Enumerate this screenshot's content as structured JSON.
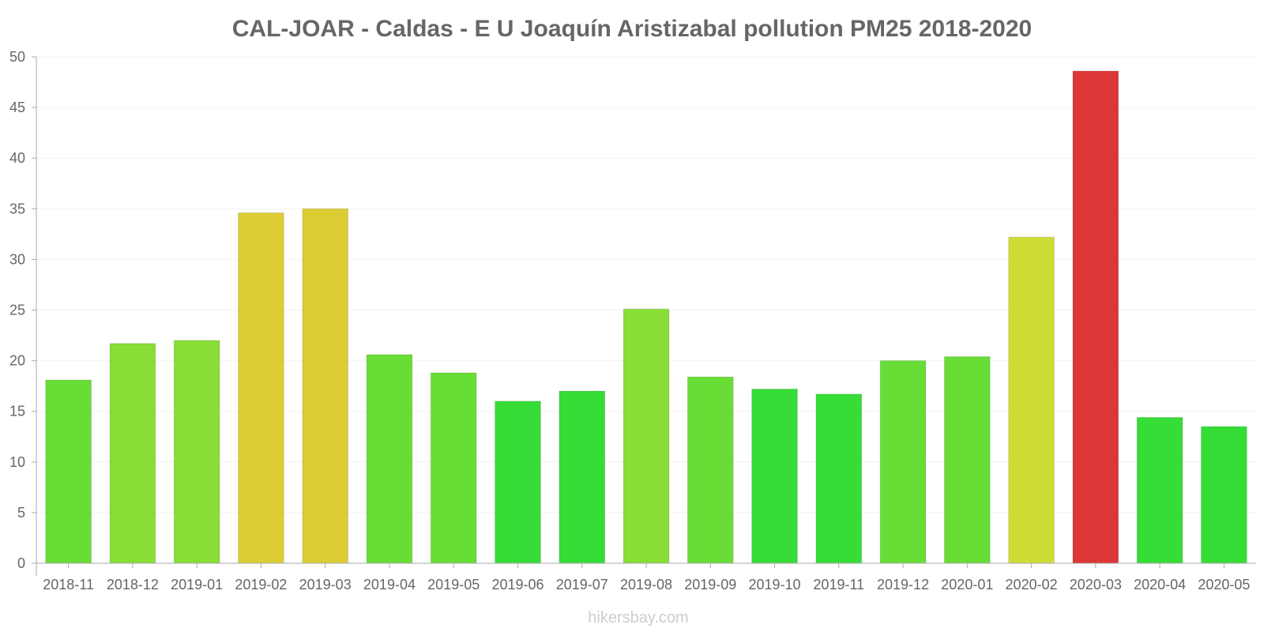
{
  "chart_data": {
    "type": "bar",
    "title": "CAL-JOAR - Caldas - E U Joaquín Aristizabal pollution PM25 2018-2020",
    "xlabel": "",
    "ylabel": "",
    "ylim": [
      0,
      50
    ],
    "yticks": [
      0,
      5,
      10,
      15,
      20,
      25,
      30,
      35,
      40,
      45,
      50
    ],
    "categories": [
      "2018-11",
      "2018-12",
      "2019-01",
      "2019-02",
      "2019-03",
      "2019-04",
      "2019-05",
      "2019-06",
      "2019-07",
      "2019-08",
      "2019-09",
      "2019-10",
      "2019-11",
      "2019-12",
      "2020-01",
      "2020-02",
      "2020-03",
      "2020-04",
      "2020-05"
    ],
    "values": [
      18.1,
      21.7,
      22.0,
      34.6,
      35.0,
      20.6,
      18.8,
      16.0,
      17.0,
      25.1,
      18.4,
      17.2,
      16.7,
      20.0,
      20.4,
      32.2,
      48.6,
      14.4,
      13.5
    ],
    "colors": [
      "#68dd36",
      "#88dd36",
      "#88dd36",
      "#dccd34",
      "#dccd34",
      "#68dd36",
      "#68dd36",
      "#35dd36",
      "#35dd36",
      "#88dd36",
      "#68dd36",
      "#35dd36",
      "#35dd36",
      "#68dd36",
      "#68dd36",
      "#cedd36",
      "#dc3636",
      "#35dd36",
      "#35dd36"
    ],
    "grid": true,
    "legend": "none"
  },
  "watermark": "hikersbay.com"
}
